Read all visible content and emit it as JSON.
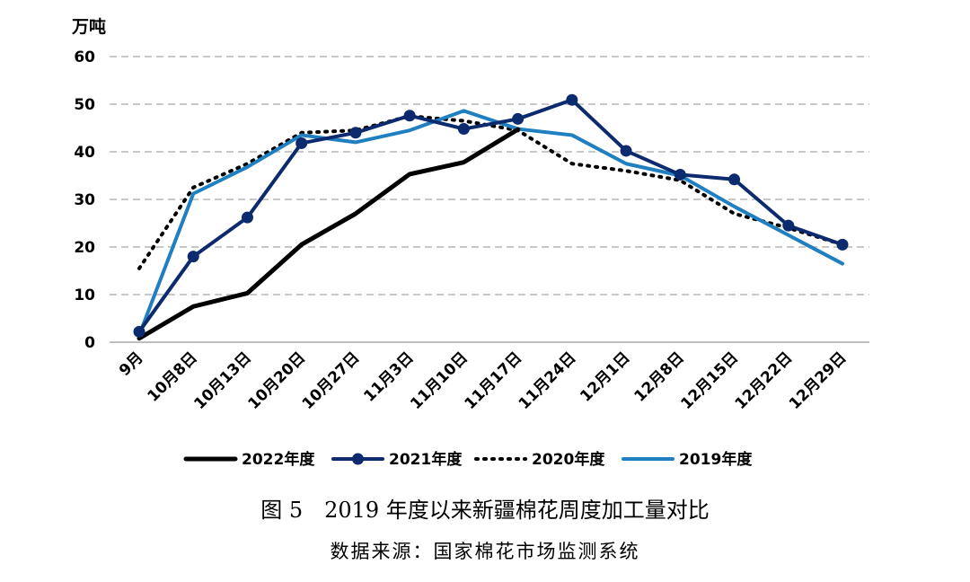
{
  "figure": {
    "caption": "图 5　2019 年度以来新疆棉花周度加工量对比",
    "source": "数据来源：国家棉花市场监测系统"
  },
  "chart_data": {
    "type": "line",
    "ylabel": "万吨",
    "ylim": [
      0,
      60
    ],
    "yticks": [
      0,
      10,
      20,
      30,
      40,
      50,
      60
    ],
    "grid": true,
    "legend_position": "bottom",
    "categories": [
      "9月",
      "10月8日",
      "10月13日",
      "10月20日",
      "10月27日",
      "11月3日",
      "11月10日",
      "11月17日",
      "11月24日",
      "12月1日",
      "12月8日",
      "12月15日",
      "12月22日",
      "12月29日"
    ],
    "series": [
      {
        "name": "2022年度",
        "color": "#000000",
        "style": "solid-thick",
        "marker": "none",
        "values": [
          0.8,
          7.5,
          10.3,
          20.5,
          27.0,
          35.3,
          37.8,
          44.7,
          null,
          null,
          null,
          null,
          null,
          null
        ]
      },
      {
        "name": "2021年度",
        "color": "#0c2a6e",
        "style": "solid",
        "marker": "circle",
        "values": [
          2.2,
          18.0,
          26.2,
          41.8,
          44.0,
          47.6,
          44.8,
          46.9,
          50.9,
          40.2,
          35.2,
          34.2,
          24.5,
          20.5
        ]
      },
      {
        "name": "2020年度",
        "color": "#000000",
        "style": "dotted",
        "marker": "none",
        "values": [
          15.5,
          32.5,
          37.5,
          44.0,
          44.5,
          47.5,
          46.5,
          44.5,
          37.5,
          36.0,
          34.0,
          27.0,
          24.0,
          20.5
        ]
      },
      {
        "name": "2019年度",
        "color": "#1f7fc0",
        "style": "solid",
        "marker": "none",
        "values": [
          1.5,
          31.2,
          36.8,
          43.5,
          42.0,
          44.5,
          48.6,
          44.8,
          43.5,
          37.5,
          35.0,
          28.5,
          22.5,
          16.5
        ]
      }
    ]
  }
}
